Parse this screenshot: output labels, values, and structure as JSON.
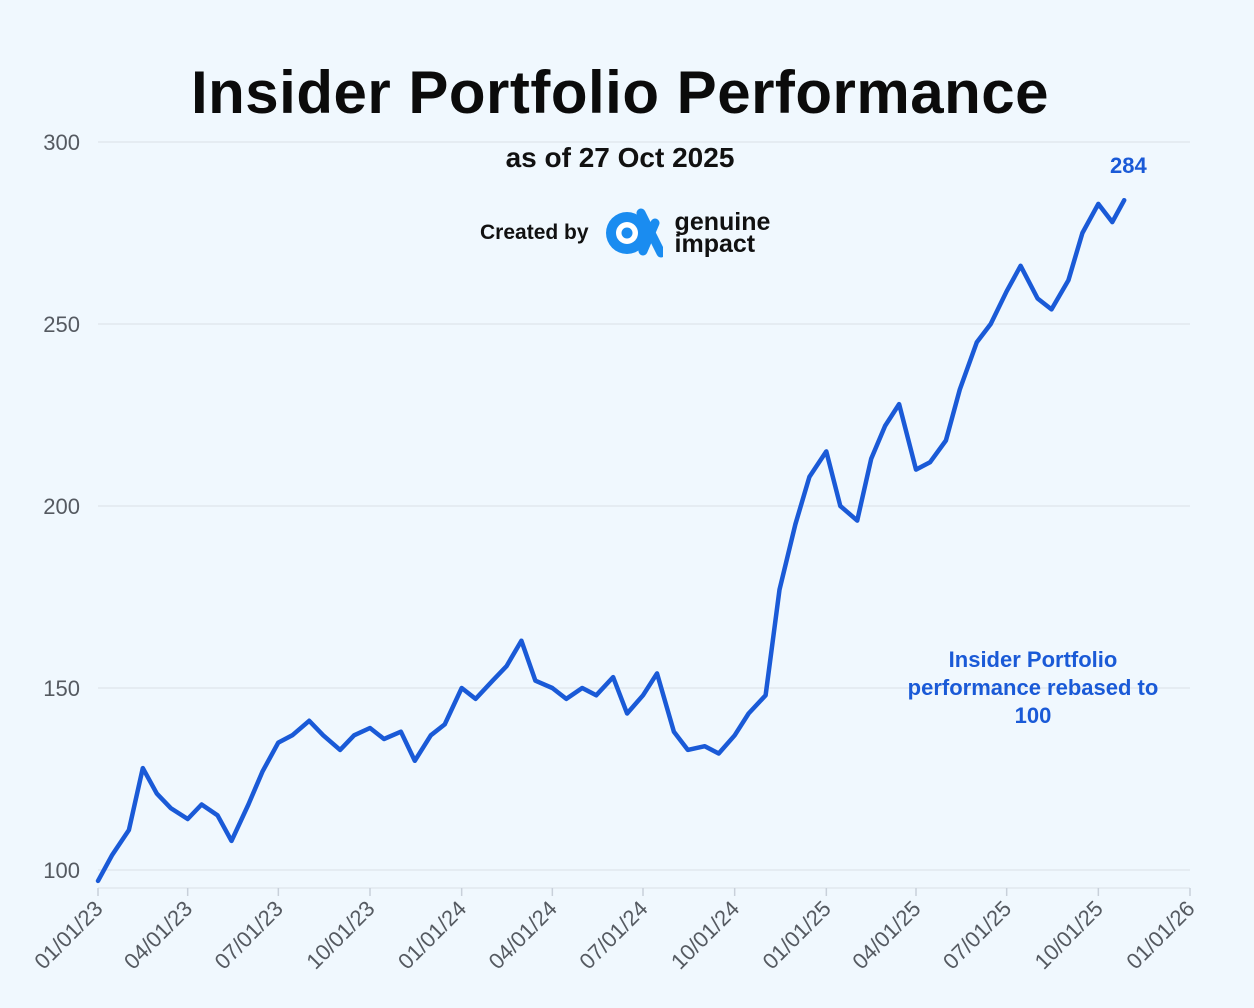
{
  "chart_data": {
    "type": "line",
    "title": "Insider Portfolio Performance",
    "subtitle": "as of 27 Oct 2025",
    "series_name": "Insider Portfolio performance rebased to 100",
    "annotation": "Insider Portfolio performance rebased to 100",
    "end_label": "284",
    "ylim": [
      95,
      300
    ],
    "yticks": [
      "100",
      "150",
      "200",
      "250",
      "300"
    ],
    "xticks": [
      "01/01/23",
      "04/01/23",
      "07/01/23",
      "10/01/23",
      "01/01/24",
      "04/01/24",
      "07/01/24",
      "10/01/24",
      "01/01/25",
      "04/01/25",
      "07/01/25",
      "10/01/25",
      "01/01/26"
    ],
    "grid": true,
    "x": [
      "01/01/23",
      "01/15/23",
      "02/01/23",
      "02/15/23",
      "03/01/23",
      "03/15/23",
      "04/01/23",
      "04/15/23",
      "05/01/23",
      "05/15/23",
      "06/01/23",
      "06/15/23",
      "07/01/23",
      "07/15/23",
      "08/01/23",
      "08/15/23",
      "09/01/23",
      "09/15/23",
      "10/01/23",
      "10/15/23",
      "11/01/23",
      "11/15/23",
      "12/01/23",
      "12/15/23",
      "01/01/24",
      "01/15/24",
      "02/01/24",
      "02/15/24",
      "03/01/24",
      "03/15/24",
      "04/01/24",
      "04/15/24",
      "05/01/24",
      "05/15/24",
      "06/01/24",
      "06/15/24",
      "07/01/24",
      "07/15/24",
      "08/01/24",
      "08/15/24",
      "09/01/24",
      "09/15/24",
      "10/01/24",
      "10/15/24",
      "11/01/24",
      "11/15/24",
      "12/01/24",
      "12/15/24",
      "01/01/25",
      "01/15/25",
      "02/01/25",
      "02/15/25",
      "03/01/25",
      "03/15/25",
      "04/01/25",
      "04/15/25",
      "05/01/25",
      "05/15/25",
      "06/01/25",
      "06/15/25",
      "07/01/25",
      "07/15/25",
      "08/01/25",
      "08/15/25",
      "09/01/25",
      "09/15/25",
      "10/01/25",
      "10/15/25",
      "10/27/25"
    ],
    "values": [
      97,
      104,
      111,
      128,
      121,
      117,
      114,
      118,
      115,
      108,
      118,
      127,
      135,
      137,
      141,
      137,
      133,
      137,
      139,
      136,
      138,
      130,
      137,
      140,
      150,
      147,
      152,
      156,
      163,
      152,
      150,
      147,
      150,
      148,
      153,
      143,
      148,
      154,
      138,
      133,
      134,
      132,
      137,
      143,
      148,
      177,
      195,
      208,
      215,
      200,
      196,
      213,
      222,
      228,
      210,
      212,
      218,
      232,
      245,
      250,
      259,
      266,
      257,
      254,
      262,
      275,
      283,
      278,
      284
    ]
  }
}
